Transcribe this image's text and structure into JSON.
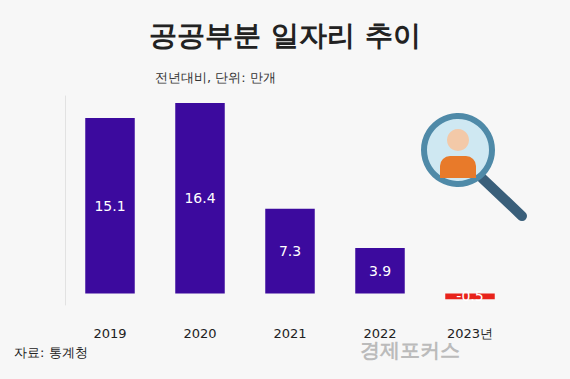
{
  "chart_data": {
    "type": "bar",
    "title": "공공부분 일자리 추이",
    "subtitle": "전년대비, 단위: 만개",
    "categories": [
      "2019",
      "2020",
      "2021",
      "2022",
      "2023년"
    ],
    "values": [
      15.1,
      16.4,
      7.3,
      3.9,
      -0.5
    ],
    "colors": [
      "#3c0a9e",
      "#3c0a9e",
      "#3c0a9e",
      "#3c0a9e",
      "#e8231b"
    ],
    "ylim": [
      -1,
      17
    ],
    "grid": false,
    "data_labels": true,
    "tick_labels": "x",
    "annotations": [
      "자료: 통계청",
      "경제포커스"
    ]
  }
}
